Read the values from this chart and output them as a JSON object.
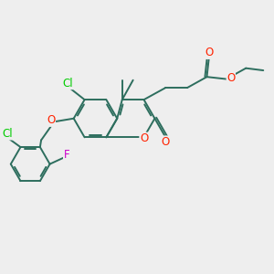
{
  "bg_color": "#eeeeee",
  "bond_color": "#2d6e5e",
  "atom_colors": {
    "O": "#ff2200",
    "Cl": "#00cc00",
    "F": "#cc00cc",
    "C": "#2d6e5e"
  },
  "lw": 1.4,
  "fs": 8.5,
  "fs_small": 7.5
}
